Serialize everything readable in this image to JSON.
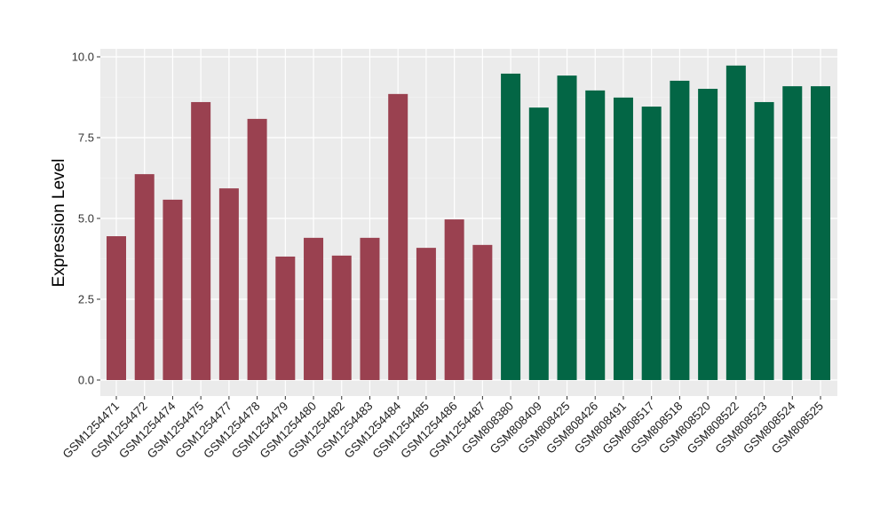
{
  "chart_data": {
    "type": "bar",
    "title": "",
    "xlabel": "",
    "ylabel": "Expression Level",
    "ylim": [
      0,
      10.3
    ],
    "yticks": [
      "0.0",
      "2.5",
      "5.0",
      "7.5",
      "10.0"
    ],
    "ytick_values": [
      0,
      2.5,
      5,
      7.5,
      10
    ],
    "grid": true,
    "categories": [
      "GSM1254471",
      "GSM1254472",
      "GSM1254474",
      "GSM1254475",
      "GSM1254477",
      "GSM1254478",
      "GSM1254479",
      "GSM1254480",
      "GSM1254482",
      "GSM1254483",
      "GSM1254484",
      "GSM1254485",
      "GSM1254486",
      "GSM1254487",
      "GSM808380",
      "GSM808409",
      "GSM808425",
      "GSM808426",
      "GSM808491",
      "GSM808517",
      "GSM808518",
      "GSM808520",
      "GSM808522",
      "GSM808523",
      "GSM808524",
      "GSM808525"
    ],
    "values": [
      4.45,
      6.37,
      5.58,
      8.6,
      5.93,
      8.08,
      3.82,
      4.4,
      3.85,
      4.4,
      8.85,
      4.09,
      4.97,
      4.18,
      9.48,
      8.43,
      9.42,
      8.96,
      8.74,
      8.46,
      9.26,
      9.01,
      9.73,
      8.6,
      9.09,
      9.09
    ],
    "groups": [
      0,
      0,
      0,
      0,
      0,
      0,
      0,
      0,
      0,
      0,
      0,
      0,
      0,
      0,
      1,
      1,
      1,
      1,
      1,
      1,
      1,
      1,
      1,
      1,
      1,
      1
    ],
    "group_colors": [
      "#9a4150",
      "#036645"
    ],
    "panel_color": "#ebebeb"
  }
}
